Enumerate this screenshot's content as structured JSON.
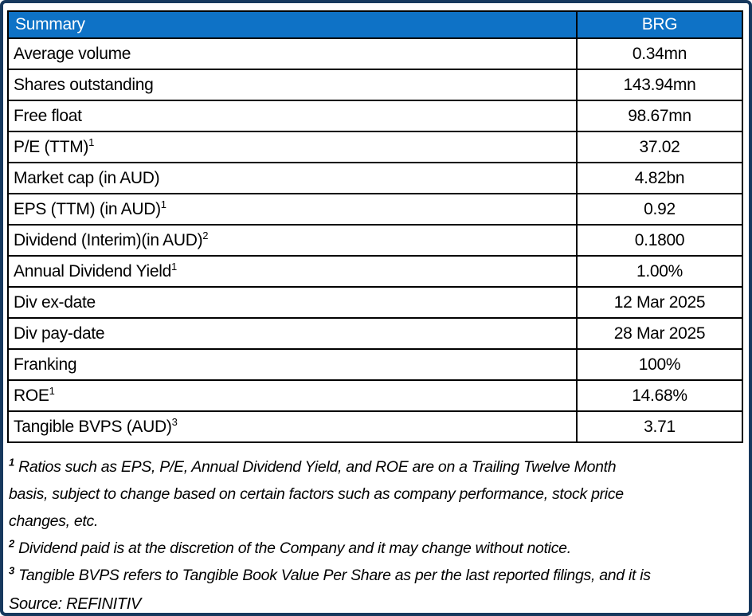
{
  "table": {
    "header": {
      "label": "Summary",
      "value": "BRG"
    },
    "rows": [
      {
        "label": "Average volume",
        "sup": "",
        "value": "0.34mn"
      },
      {
        "label": "Shares outstanding",
        "sup": "",
        "value": "143.94mn"
      },
      {
        "label": "Free float",
        "sup": "",
        "value": "98.67mn"
      },
      {
        "label": "P/E (TTM)",
        "sup": "1",
        "value": "37.02"
      },
      {
        "label": "Market cap (in AUD)",
        "sup": "",
        "value": "4.82bn"
      },
      {
        "label": "EPS (TTM) (in AUD)",
        "sup": "1",
        "value": "0.92"
      },
      {
        "label": "Dividend (Interim)(in AUD)",
        "sup": "2",
        "value": "0.1800"
      },
      {
        "label": "Annual Dividend Yield",
        "sup": "1",
        "value": "1.00%"
      },
      {
        "label": "Div ex-date",
        "sup": "",
        "value": "12 Mar 2025"
      },
      {
        "label": "Div pay-date",
        "sup": "",
        "value": "28 Mar 2025"
      },
      {
        "label": "Franking",
        "sup": "",
        "value": "100%"
      },
      {
        "label": "ROE",
        "sup": "1",
        "value": "14.68%"
      },
      {
        "label": "Tangible BVPS (AUD)",
        "sup": "3",
        "value": "3.71"
      }
    ]
  },
  "footnotes": [
    {
      "sup": "1",
      "text": "Ratios such as EPS, P/E,  Annual Dividend Yield, and ROE are on a Trailing Twelve Month\nbasis, subject to change based on certain factors such as company performance, stock price\nchanges, etc."
    },
    {
      "sup": "2",
      "text": "Dividend paid is at the discretion of the Company and it may change without notice."
    },
    {
      "sup": "3",
      "text": "Tangible BVPS refers to Tangible Book Value Per Share as per the last reported filings, and it is"
    }
  ],
  "source": "Source: REFINITIV",
  "colors": {
    "header_bg": "#0E72C6",
    "header_text": "#FFFFFF",
    "outer_border": "#17395E",
    "grid": "#000000"
  }
}
